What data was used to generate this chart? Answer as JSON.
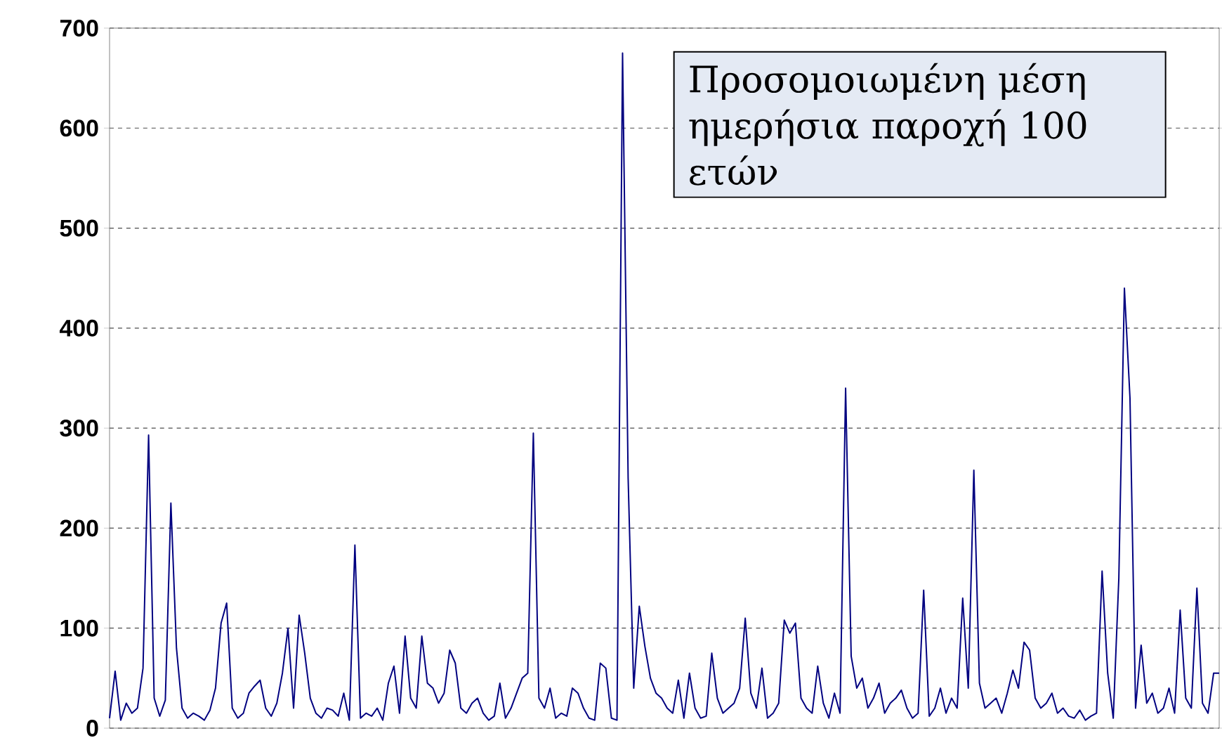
{
  "chart_data": {
    "type": "line",
    "categories": [
      null,
      null,
      null,
      null,
      null,
      null,
      null,
      null,
      null,
      null,
      null,
      null,
      null,
      null,
      null,
      null,
      null,
      null,
      null,
      null,
      null,
      null,
      null,
      null,
      null,
      null,
      null,
      null,
      null,
      null,
      null,
      null,
      null,
      null,
      null,
      null,
      null,
      null,
      null,
      null,
      null,
      null,
      null,
      null,
      null,
      null,
      null,
      null,
      null,
      null,
      null,
      null,
      null,
      null,
      null,
      null,
      null,
      null,
      null,
      null,
      null,
      null,
      null,
      null,
      null,
      null,
      null,
      null,
      null,
      null,
      null,
      null,
      null,
      null,
      null,
      null,
      null,
      null,
      null,
      null,
      null,
      null,
      null,
      null,
      null,
      null,
      null,
      null,
      null,
      null,
      null,
      null,
      null,
      null,
      null,
      null,
      null,
      null,
      null,
      null,
      null,
      null,
      null,
      null,
      null,
      null,
      null,
      null,
      null,
      null,
      null,
      null,
      null,
      null,
      null,
      null,
      null,
      null,
      null,
      null,
      null,
      null,
      null,
      null,
      null,
      null,
      null,
      null,
      null,
      null,
      null,
      null,
      null,
      null,
      null,
      null,
      null,
      null,
      null,
      null,
      null,
      null,
      null,
      null,
      null,
      null,
      null,
      null,
      null,
      null,
      null,
      null,
      null,
      null,
      null,
      null,
      null,
      null,
      null,
      null,
      null,
      null,
      null,
      null,
      null,
      null,
      null,
      null,
      null,
      null,
      null,
      null,
      null,
      null,
      null,
      null,
      null,
      null,
      null,
      null,
      null,
      null,
      null,
      null,
      null,
      null,
      null,
      null,
      null,
      null,
      null,
      null,
      null,
      null,
      null,
      null,
      null,
      null,
      null,
      null
    ],
    "values": [
      10,
      57,
      8,
      25,
      15,
      20,
      60,
      293,
      30,
      12,
      28,
      225,
      80,
      20,
      10,
      15,
      12,
      8,
      18,
      40,
      105,
      125,
      20,
      10,
      15,
      35,
      42,
      48,
      20,
      12,
      25,
      55,
      100,
      20,
      113,
      75,
      30,
      15,
      10,
      20,
      18,
      12,
      35,
      8,
      183,
      10,
      15,
      12,
      20,
      8,
      45,
      62,
      15,
      92,
      30,
      20,
      92,
      45,
      40,
      25,
      35,
      78,
      65,
      20,
      15,
      25,
      30,
      15,
      8,
      12,
      45,
      10,
      20,
      35,
      50,
      55,
      295,
      30,
      20,
      40,
      10,
      15,
      12,
      40,
      35,
      20,
      10,
      8,
      65,
      60,
      10,
      8,
      675,
      250,
      40,
      122,
      82,
      50,
      35,
      30,
      20,
      15,
      48,
      10,
      55,
      20,
      10,
      12,
      75,
      30,
      15,
      20,
      25,
      40,
      110,
      35,
      20,
      60,
      10,
      15,
      25,
      108,
      95,
      105,
      30,
      20,
      15,
      62,
      25,
      10,
      35,
      15,
      340,
      72,
      40,
      50,
      20,
      30,
      45,
      15,
      25,
      30,
      38,
      20,
      10,
      15,
      138,
      12,
      20,
      40,
      15,
      30,
      20,
      130,
      40,
      258,
      45,
      20,
      25,
      30,
      15,
      35,
      58,
      40,
      86,
      78,
      30,
      20,
      25,
      35,
      15,
      20,
      12,
      10,
      18,
      8,
      12,
      15,
      157,
      55,
      10,
      150,
      440,
      330,
      20,
      83,
      25,
      35,
      15,
      20,
      40,
      15,
      118,
      30,
      20,
      140,
      25,
      15,
      55,
      55
    ],
    "color": "#000080",
    "ylim": [
      0,
      700
    ],
    "yticks": [
      0,
      100,
      200,
      300,
      400,
      500,
      600,
      700
    ],
    "grid": "y",
    "tick_labels": "y",
    "annotations": [
      "Προσομοιωμένη μέση ημερήσια παροχή 100 ετών"
    ]
  }
}
